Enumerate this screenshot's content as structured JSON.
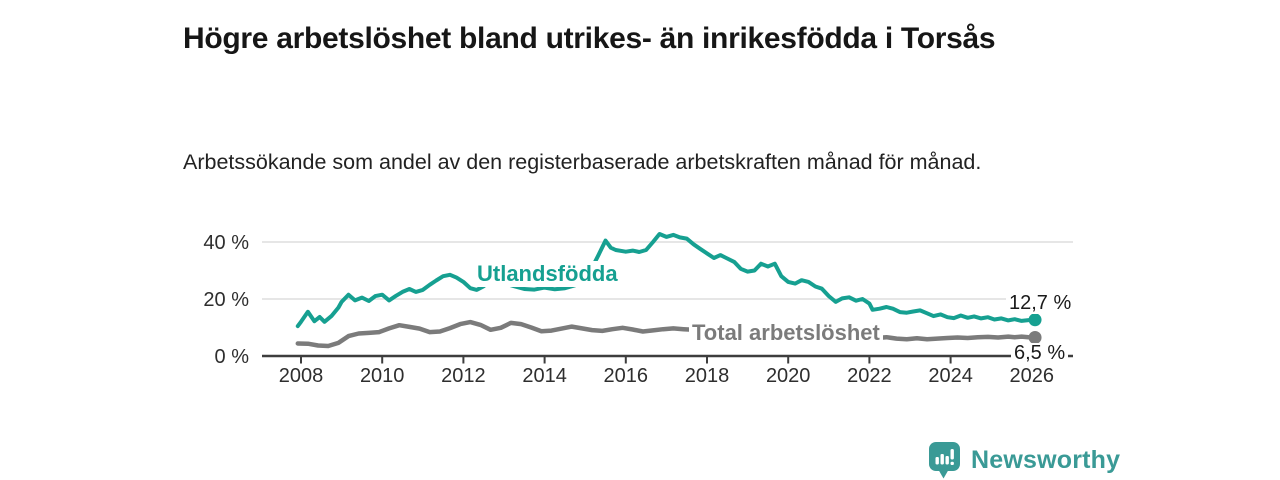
{
  "header": {
    "title": "Högre arbetslöshet bland utrikes- än inrikesfödda i Torsås",
    "subtitle": "Arbetssökande som andel av den registerbaserade arbetskraften månad för månad."
  },
  "chart_data": {
    "type": "line",
    "unit": "%",
    "grid": "horizontal",
    "x_axis": {
      "ticks": [
        2008,
        2010,
        2012,
        2014,
        2016,
        2018,
        2020,
        2022,
        2024,
        2026
      ]
    },
    "y_axis": {
      "ticks": [
        0,
        20,
        40
      ],
      "tick_labels": [
        "0 %",
        "20 %",
        "40 %"
      ],
      "range": [
        0,
        45
      ]
    },
    "series": [
      {
        "name": "Utlandsfödda",
        "color": "#16a091",
        "width": 4,
        "end_label": "12,7 %",
        "end_value": 12.7,
        "points": [
          [
            2007.92,
            10.5
          ],
          [
            2008.0,
            12
          ],
          [
            2008.17,
            15.5
          ],
          [
            2008.33,
            12.2
          ],
          [
            2008.46,
            13.7
          ],
          [
            2008.58,
            12
          ],
          [
            2008.75,
            14
          ],
          [
            2008.92,
            17
          ],
          [
            2009.0,
            19
          ],
          [
            2009.17,
            21.5
          ],
          [
            2009.33,
            19.5
          ],
          [
            2009.5,
            20.5
          ],
          [
            2009.67,
            19.3
          ],
          [
            2009.83,
            21
          ],
          [
            2010.0,
            21.5
          ],
          [
            2010.17,
            19.5
          ],
          [
            2010.33,
            21
          ],
          [
            2010.5,
            22.5
          ],
          [
            2010.67,
            23.5
          ],
          [
            2010.83,
            22.5
          ],
          [
            2011.0,
            23.2
          ],
          [
            2011.17,
            25
          ],
          [
            2011.33,
            26.5
          ],
          [
            2011.5,
            28
          ],
          [
            2011.67,
            28.5
          ],
          [
            2011.83,
            27.5
          ],
          [
            2012.0,
            26
          ],
          [
            2012.17,
            23.8
          ],
          [
            2012.33,
            23.2
          ],
          [
            2012.5,
            24.5
          ],
          [
            2012.67,
            26.5
          ],
          [
            2012.83,
            26.2
          ],
          [
            2013.0,
            25.5
          ],
          [
            2013.25,
            24.5
          ],
          [
            2013.5,
            23.5
          ],
          [
            2013.75,
            23.3
          ],
          [
            2014.0,
            24
          ],
          [
            2014.25,
            23.4
          ],
          [
            2014.5,
            23.8
          ],
          [
            2014.75,
            24.8
          ],
          [
            2015.0,
            27
          ],
          [
            2015.17,
            31
          ],
          [
            2015.33,
            35.5
          ],
          [
            2015.5,
            40.5
          ],
          [
            2015.63,
            38
          ],
          [
            2015.75,
            37.2
          ],
          [
            2016.0,
            36.6
          ],
          [
            2016.17,
            37
          ],
          [
            2016.33,
            36.5
          ],
          [
            2016.5,
            37.2
          ],
          [
            2016.67,
            40
          ],
          [
            2016.83,
            42.8
          ],
          [
            2017.0,
            41.8
          ],
          [
            2017.17,
            42.5
          ],
          [
            2017.33,
            41.6
          ],
          [
            2017.5,
            41.2
          ],
          [
            2017.67,
            39.2
          ],
          [
            2017.83,
            37.6
          ],
          [
            2018.0,
            36
          ],
          [
            2018.17,
            34.4
          ],
          [
            2018.33,
            35.4
          ],
          [
            2018.5,
            34.2
          ],
          [
            2018.67,
            33
          ],
          [
            2018.83,
            30.6
          ],
          [
            2019.0,
            29.6
          ],
          [
            2019.17,
            30
          ],
          [
            2019.33,
            32.4
          ],
          [
            2019.5,
            31.4
          ],
          [
            2019.67,
            32.4
          ],
          [
            2019.83,
            28
          ],
          [
            2020.0,
            26
          ],
          [
            2020.17,
            25.4
          ],
          [
            2020.33,
            26.6
          ],
          [
            2020.5,
            26
          ],
          [
            2020.67,
            24.4
          ],
          [
            2020.83,
            23.6
          ],
          [
            2021.0,
            21
          ],
          [
            2021.17,
            19
          ],
          [
            2021.33,
            20.2
          ],
          [
            2021.5,
            20.6
          ],
          [
            2021.67,
            19.4
          ],
          [
            2021.83,
            20
          ],
          [
            2022.0,
            18.4
          ],
          [
            2022.08,
            16.2
          ],
          [
            2022.25,
            16.6
          ],
          [
            2022.42,
            17.2
          ],
          [
            2022.58,
            16.6
          ],
          [
            2022.75,
            15.4
          ],
          [
            2022.92,
            15.2
          ],
          [
            2023.08,
            15.6
          ],
          [
            2023.25,
            16
          ],
          [
            2023.42,
            15
          ],
          [
            2023.58,
            14
          ],
          [
            2023.75,
            14.6
          ],
          [
            2023.92,
            13.6
          ],
          [
            2024.08,
            13.3
          ],
          [
            2024.25,
            14.2
          ],
          [
            2024.42,
            13.4
          ],
          [
            2024.58,
            13.9
          ],
          [
            2024.75,
            13.2
          ],
          [
            2024.92,
            13.6
          ],
          [
            2025.08,
            12.8
          ],
          [
            2025.25,
            13.2
          ],
          [
            2025.42,
            12.5
          ],
          [
            2025.58,
            12.9
          ],
          [
            2025.75,
            12.3
          ],
          [
            2025.92,
            12.6
          ],
          [
            2026.08,
            12.7
          ]
        ]
      },
      {
        "name": "Total arbetslöshet",
        "color": "#7b7b7b",
        "width": 4.5,
        "end_label": "6,5 %",
        "end_value": 6.5,
        "points": [
          [
            2007.92,
            4.4
          ],
          [
            2008.17,
            4.3
          ],
          [
            2008.42,
            3.7
          ],
          [
            2008.67,
            3.5
          ],
          [
            2008.92,
            4.6
          ],
          [
            2009.17,
            7
          ],
          [
            2009.42,
            7.9
          ],
          [
            2009.67,
            8.1
          ],
          [
            2009.92,
            8.4
          ],
          [
            2010.17,
            9.7
          ],
          [
            2010.42,
            10.8
          ],
          [
            2010.67,
            10.2
          ],
          [
            2010.92,
            9.6
          ],
          [
            2011.17,
            8.4
          ],
          [
            2011.42,
            8.6
          ],
          [
            2011.67,
            9.8
          ],
          [
            2011.92,
            11.2
          ],
          [
            2012.17,
            11.9
          ],
          [
            2012.42,
            10.9
          ],
          [
            2012.67,
            9.2
          ],
          [
            2012.92,
            9.9
          ],
          [
            2013.17,
            11.6
          ],
          [
            2013.42,
            11.2
          ],
          [
            2013.67,
            10
          ],
          [
            2013.92,
            8.7
          ],
          [
            2014.17,
            8.9
          ],
          [
            2014.42,
            9.6
          ],
          [
            2014.67,
            10.3
          ],
          [
            2014.92,
            9.7
          ],
          [
            2015.17,
            9.1
          ],
          [
            2015.42,
            8.8
          ],
          [
            2015.67,
            9.4
          ],
          [
            2015.92,
            9.9
          ],
          [
            2016.17,
            9.3
          ],
          [
            2016.42,
            8.6
          ],
          [
            2016.67,
            9
          ],
          [
            2016.92,
            9.4
          ],
          [
            2017.17,
            9.7
          ],
          [
            2017.42,
            9.4
          ],
          [
            2017.67,
            9.2
          ],
          [
            2017.92,
            9
          ],
          [
            2018.25,
            8.8
          ],
          [
            2018.58,
            8.6
          ],
          [
            2018.92,
            8.4
          ],
          [
            2019.25,
            8.3
          ],
          [
            2019.58,
            8.2
          ],
          [
            2019.92,
            8.5
          ],
          [
            2020.25,
            8.8
          ],
          [
            2020.58,
            8.4
          ],
          [
            2020.92,
            7.9
          ],
          [
            2021.25,
            7.4
          ],
          [
            2021.58,
            7
          ],
          [
            2021.92,
            6.7
          ],
          [
            2022.17,
            6.3
          ],
          [
            2022.42,
            6.6
          ],
          [
            2022.67,
            6.1
          ],
          [
            2022.92,
            5.9
          ],
          [
            2023.17,
            6.2
          ],
          [
            2023.42,
            5.9
          ],
          [
            2023.67,
            6.1
          ],
          [
            2023.92,
            6.3
          ],
          [
            2024.17,
            6.5
          ],
          [
            2024.42,
            6.3
          ],
          [
            2024.67,
            6.6
          ],
          [
            2024.92,
            6.7
          ],
          [
            2025.17,
            6.5
          ],
          [
            2025.42,
            6.8
          ],
          [
            2025.58,
            6.6
          ],
          [
            2025.75,
            6.8
          ],
          [
            2025.92,
            6.6
          ],
          [
            2026.08,
            6.5
          ]
        ]
      }
    ]
  },
  "branding": {
    "logo_text": "Newsworthy",
    "logo_color": "#3a9a96"
  }
}
